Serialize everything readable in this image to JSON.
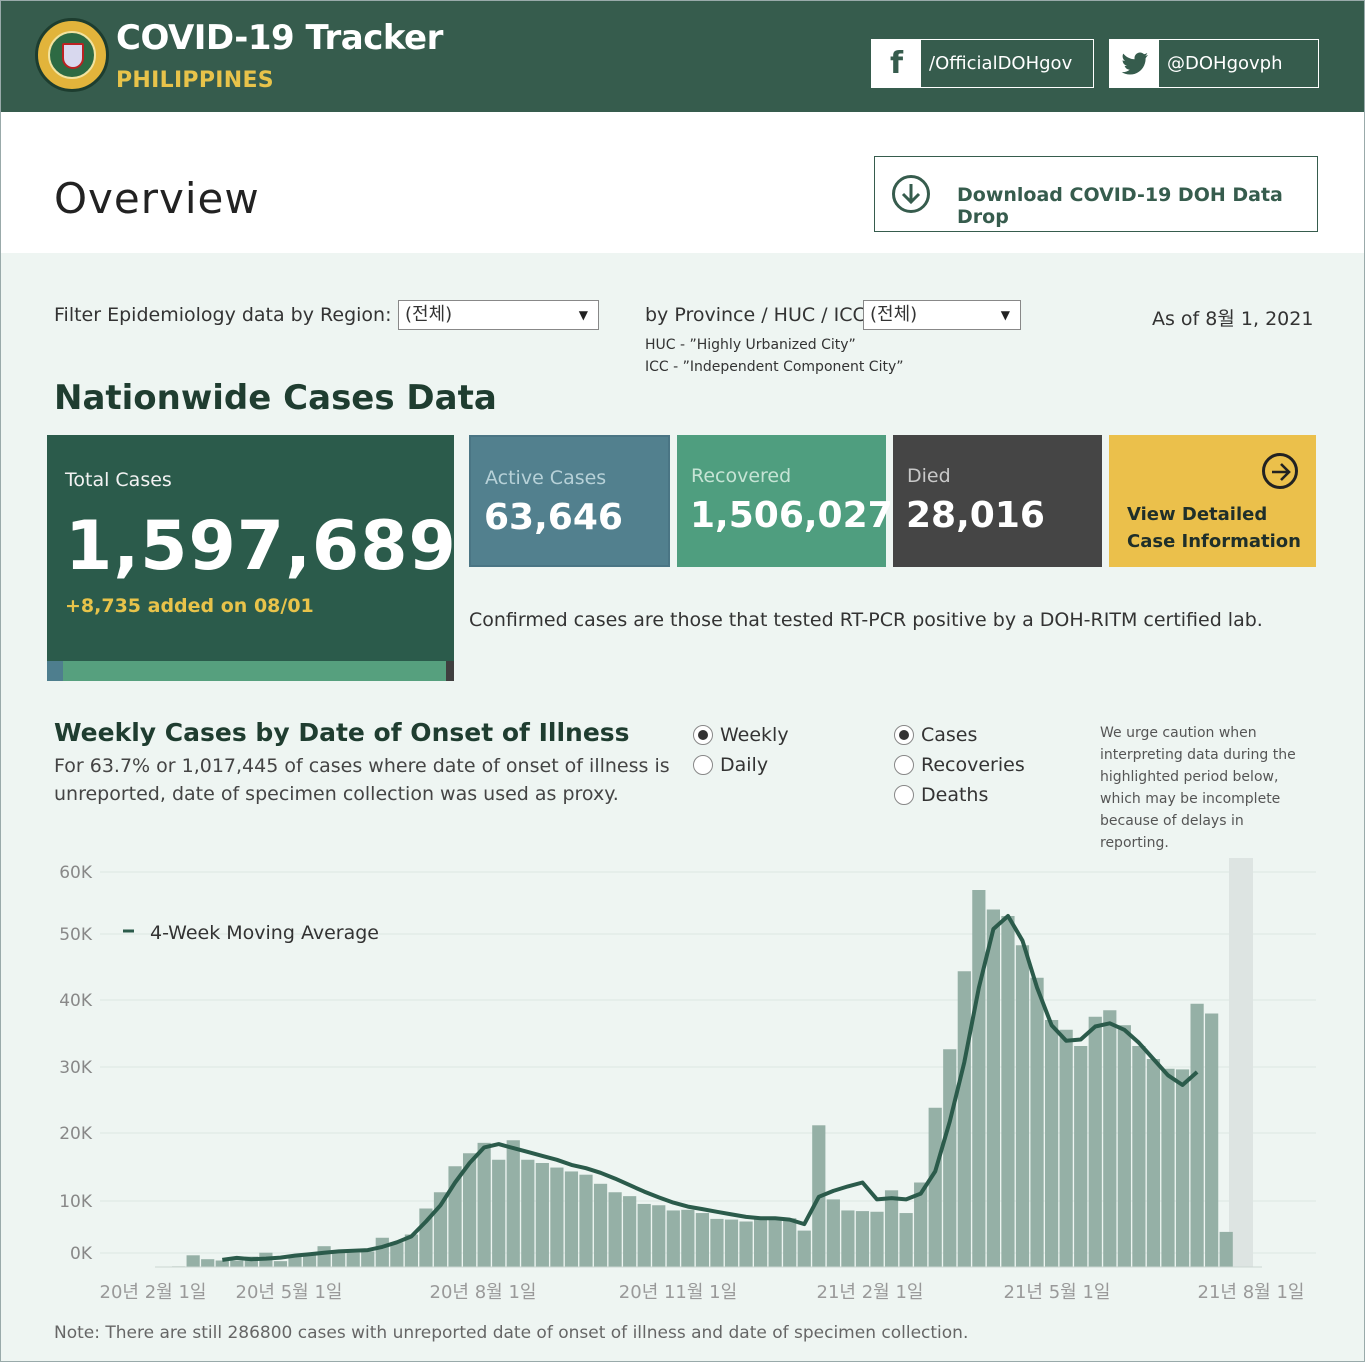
{
  "header": {
    "title": "COVID-19 Tracker",
    "subtitle": "PHILIPPINES",
    "facebook_label": "/OfficialDOHgov",
    "twitter_label": "@DOHgovph",
    "facebook_icon": "facebook-icon",
    "twitter_icon": "twitter-icon",
    "bg_color": "#365c4d",
    "accent_color": "#e8c34a"
  },
  "overview": {
    "title": "Overview",
    "download_label": "Download COVID-19 DOH Data Drop"
  },
  "filters": {
    "region_label": "Filter Epidemiology data by Region:",
    "region_value": "(전체)",
    "province_label": "by Province / HUC / ICC:",
    "province_value": "(전체)",
    "huc_note": "HUC - ”Highly Urbanized City”",
    "icc_note": "ICC - ”Independent Component City”",
    "as_of": "As of 8월 1, 2021"
  },
  "nationwide": {
    "title": "Nationwide Cases Data",
    "total_label": "Total Cases",
    "total_value": "1,597,689",
    "total_added": "+8,735 added on 08/01",
    "active_label": "Active Cases",
    "active_value": "63,646",
    "recovered_label": "Recovered",
    "recovered_value": "1,506,027",
    "died_label": "Died",
    "died_value": "28,016",
    "detail_label": "View Detailed Case Information",
    "confirmed_note": "Confirmed cases are those that tested RT-PCR positive by a DOH-RITM certified lab."
  },
  "weekly": {
    "title": "Weekly Cases by Date of Onset of Illness",
    "desc": "For 63.7% or 1,017,445 of cases where date of onset of illness is unreported, date of specimen collection was used as proxy.",
    "period_options": [
      {
        "label": "Weekly",
        "selected": true
      },
      {
        "label": "Daily",
        "selected": false
      }
    ],
    "metric_options": [
      {
        "label": "Cases",
        "selected": true
      },
      {
        "label": "Recoveries",
        "selected": false
      },
      {
        "label": "Deaths",
        "selected": false
      }
    ],
    "caution": "We urge caution when interpreting data during the highlighted period below, which may be incomplete because of delays in reporting.",
    "bottom_note": "Note: There are still 286800 cases with unreported date of onset of illness and date of specimen collection."
  },
  "chart_data": {
    "type": "bar",
    "legend": "4-Week Moving Average",
    "y_ticks": [
      "60K",
      "50K",
      "40K",
      "30K",
      "20K",
      "10K",
      "0K"
    ],
    "x_ticks": [
      "20년 2월 1일",
      "20년 5월 1일",
      "20년 8월 1일",
      "20년 11월 1일",
      "21년 2월 1일",
      "21년 5월 1일",
      "21년 8월 1일"
    ],
    "ylim": [
      0,
      60000
    ],
    "bar_color": "#95b0a6",
    "line_color": "#2b5b4b",
    "highlight_color": "#dde4e2",
    "highlight_weeks": 2,
    "series": [
      {
        "values": [
          100,
          1800,
          1200,
          1000,
          1000,
          1600,
          2200,
          900,
          1900,
          2000,
          3200,
          2200,
          2200,
          2400,
          4500,
          3800,
          5000,
          9000,
          11500,
          15500,
          17500,
          19100,
          16500,
          19500,
          16500,
          16000,
          15300,
          14700,
          14200,
          12800,
          11500,
          10900,
          9700,
          9500,
          8700,
          8800,
          8300,
          7400,
          7300,
          7000,
          7500,
          7300,
          7500,
          5600,
          21800,
          10400,
          8700,
          8600,
          8500,
          11800,
          8300,
          13000,
          24500,
          33500,
          45500,
          58000,
          55000,
          54000,
          49500,
          44500,
          38000,
          36500,
          34000,
          38500,
          39500,
          37200,
          34000,
          32000,
          30500,
          30400,
          40500,
          39000,
          5400
        ]
      },
      {
        "name": "4-Week Moving Average",
        "values": [
          null,
          null,
          null,
          1100,
          1400,
          1200,
          1300,
          1450,
          1750,
          1950,
          2200,
          2400,
          2500,
          2600,
          3100,
          3800,
          4700,
          7000,
          9500,
          13000,
          16000,
          18400,
          18900,
          18300,
          17700,
          17100,
          16500,
          15700,
          15200,
          14500,
          13600,
          12600,
          11600,
          10700,
          9900,
          9300,
          8900,
          8500,
          8100,
          7700,
          7500,
          7500,
          7300,
          6600,
          10800,
          11700,
          12400,
          13000,
          10400,
          10600,
          10400,
          11300,
          14700,
          22400,
          31500,
          43000,
          52000,
          54000,
          50200,
          43000,
          37200,
          34800,
          35000,
          37000,
          37500,
          36500,
          34500,
          32000,
          29500,
          28000,
          30000,
          null,
          null
        ]
      }
    ]
  }
}
